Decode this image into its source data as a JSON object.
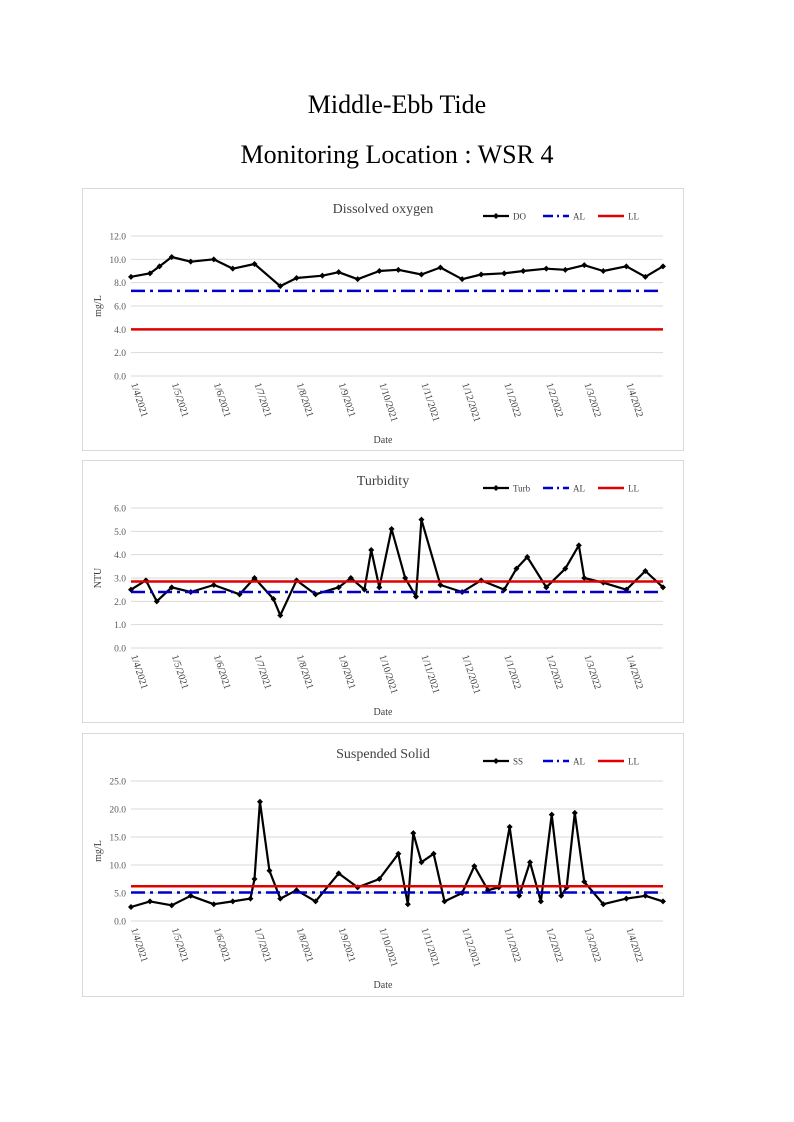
{
  "page": {
    "title": "Middle-Ebb Tide",
    "subtitle": "Monitoring Location : WSR 4"
  },
  "colors": {
    "series": "#000000",
    "al": "#0000cc",
    "ll": "#e00000",
    "grid": "#d9d9d9"
  },
  "chart_data": [
    {
      "type": "line",
      "title": "Dissolved oxygen",
      "xlabel": "Date",
      "ylabel": "mg/L",
      "ylim": [
        0,
        12
      ],
      "yticks": [
        "0.0",
        "2.0",
        "4.0",
        "6.0",
        "8.0",
        "10.0",
        "12.0"
      ],
      "xticks": [
        "1/4/2021",
        "1/5/2021",
        "1/6/2021",
        "1/7/2021",
        "1/8/2021",
        "1/9/2021",
        "1/10/2021",
        "1/11/2021",
        "1/12/2021",
        "1/1/2022",
        "1/2/2022",
        "1/3/2022",
        "1/4/2022"
      ],
      "grid": true,
      "legend_position": "top-right",
      "series": [
        {
          "name": "DO",
          "style": "line-markers",
          "x": [
            "2021-04-01",
            "2021-04-15",
            "2021-04-22",
            "2021-05-01",
            "2021-05-15",
            "2021-06-01",
            "2021-06-15",
            "2021-07-01",
            "2021-07-20",
            "2021-08-01",
            "2021-08-20",
            "2021-09-01",
            "2021-09-15",
            "2021-10-01",
            "2021-10-15",
            "2021-11-01",
            "2021-11-15",
            "2021-12-01",
            "2021-12-15",
            "2022-01-01",
            "2022-01-15",
            "2022-02-01",
            "2022-02-15",
            "2022-03-01",
            "2022-03-15",
            "2022-04-01",
            "2022-04-15",
            "2022-04-28"
          ],
          "values": [
            8.5,
            8.8,
            9.4,
            10.2,
            9.8,
            10.0,
            9.2,
            9.6,
            7.7,
            8.4,
            8.6,
            8.9,
            8.3,
            9.0,
            9.1,
            8.7,
            9.3,
            8.3,
            8.7,
            8.8,
            9.0,
            9.2,
            9.1,
            9.5,
            9.0,
            9.4,
            8.5,
            9.4
          ]
        },
        {
          "name": "AL",
          "style": "dash-dot",
          "x": [
            "2021-04-01",
            "2022-04-28"
          ],
          "values": [
            7.3,
            7.3
          ]
        },
        {
          "name": "LL",
          "style": "solid",
          "x": [
            "2021-04-01",
            "2022-04-28"
          ],
          "values": [
            4.0,
            4.0
          ]
        }
      ]
    },
    {
      "type": "line",
      "title": "Turbidity",
      "xlabel": "Date",
      "ylabel": "NTU",
      "ylim": [
        0,
        6
      ],
      "yticks": [
        "0.0",
        "1.0",
        "2.0",
        "3.0",
        "4.0",
        "5.0",
        "6.0"
      ],
      "xticks": [
        "1/4/2021",
        "1/5/2021",
        "1/6/2021",
        "1/7/2021",
        "1/8/2021",
        "1/9/2021",
        "1/10/2021",
        "1/11/2021",
        "1/12/2021",
        "1/1/2022",
        "1/2/2022",
        "1/3/2022",
        "1/4/2022"
      ],
      "grid": true,
      "legend_position": "top-right",
      "series": [
        {
          "name": "Turb",
          "style": "line-markers",
          "x": [
            "2021-04-01",
            "2021-04-12",
            "2021-04-20",
            "2021-05-01",
            "2021-05-15",
            "2021-06-01",
            "2021-06-20",
            "2021-07-01",
            "2021-07-15",
            "2021-07-20",
            "2021-08-01",
            "2021-08-15",
            "2021-09-01",
            "2021-09-10",
            "2021-09-20",
            "2021-09-25",
            "2021-10-01",
            "2021-10-10",
            "2021-10-20",
            "2021-10-28",
            "2021-11-01",
            "2021-11-15",
            "2021-12-01",
            "2021-12-15",
            "2022-01-01",
            "2022-01-10",
            "2022-01-18",
            "2022-02-01",
            "2022-02-15",
            "2022-02-25",
            "2022-03-01",
            "2022-03-15",
            "2022-04-01",
            "2022-04-15",
            "2022-04-28"
          ],
          "values": [
            2.5,
            2.9,
            2.0,
            2.6,
            2.4,
            2.7,
            2.3,
            3.0,
            2.1,
            1.4,
            2.9,
            2.3,
            2.6,
            3.0,
            2.5,
            4.2,
            2.6,
            5.1,
            3.0,
            2.2,
            5.5,
            2.7,
            2.4,
            2.9,
            2.5,
            3.4,
            3.9,
            2.6,
            3.4,
            4.4,
            3.0,
            2.8,
            2.5,
            3.3,
            2.6
          ]
        },
        {
          "name": "AL",
          "style": "dash-dot",
          "x": [
            "2021-04-01",
            "2022-04-28"
          ],
          "values": [
            2.4,
            2.4
          ]
        },
        {
          "name": "LL",
          "style": "solid",
          "x": [
            "2021-04-01",
            "2022-04-28"
          ],
          "values": [
            2.85,
            2.85
          ]
        }
      ]
    },
    {
      "type": "line",
      "title": "Suspended Solid",
      "xlabel": "Date",
      "ylabel": "mg/L",
      "ylim": [
        0,
        25
      ],
      "yticks": [
        "0.0",
        "5.0",
        "10.0",
        "15.0",
        "20.0",
        "25.0"
      ],
      "xticks": [
        "1/4/2021",
        "1/5/2021",
        "1/6/2021",
        "1/7/2021",
        "1/8/2021",
        "1/9/2021",
        "1/10/2021",
        "1/11/2021",
        "1/12/2021",
        "1/1/2022",
        "1/2/2022",
        "1/3/2022",
        "1/4/2022"
      ],
      "grid": true,
      "legend_position": "top-right",
      "series": [
        {
          "name": "SS",
          "style": "line-markers",
          "x": [
            "2021-04-01",
            "2021-04-15",
            "2021-05-01",
            "2021-05-15",
            "2021-06-01",
            "2021-06-15",
            "2021-06-28",
            "2021-07-01",
            "2021-07-05",
            "2021-07-12",
            "2021-07-20",
            "2021-08-01",
            "2021-08-15",
            "2021-09-01",
            "2021-09-15",
            "2021-10-01",
            "2021-10-15",
            "2021-10-22",
            "2021-10-26",
            "2021-11-01",
            "2021-11-10",
            "2021-11-18",
            "2021-12-01",
            "2021-12-10",
            "2021-12-20",
            "2021-12-28",
            "2022-01-05",
            "2022-01-12",
            "2022-01-20",
            "2022-01-28",
            "2022-02-05",
            "2022-02-12",
            "2022-02-16",
            "2022-02-22",
            "2022-03-01",
            "2022-03-15",
            "2022-04-01",
            "2022-04-15",
            "2022-04-28"
          ],
          "values": [
            2.5,
            3.5,
            2.8,
            4.5,
            3.0,
            3.5,
            4.0,
            7.5,
            21.3,
            9.0,
            4.0,
            5.5,
            3.5,
            8.5,
            6.0,
            7.5,
            12.0,
            3.0,
            15.7,
            10.5,
            12.0,
            3.5,
            5.0,
            9.8,
            5.5,
            6.0,
            16.8,
            4.5,
            10.5,
            3.5,
            19.0,
            4.5,
            6.0,
            19.3,
            7.0,
            3.0,
            4.0,
            4.5,
            3.5
          ]
        },
        {
          "name": "AL",
          "style": "dash-dot",
          "x": [
            "2021-04-01",
            "2022-04-28"
          ],
          "values": [
            5.1,
            5.1
          ]
        },
        {
          "name": "LL",
          "style": "solid",
          "x": [
            "2021-04-01",
            "2022-04-28"
          ],
          "values": [
            6.2,
            6.2
          ]
        }
      ]
    }
  ]
}
